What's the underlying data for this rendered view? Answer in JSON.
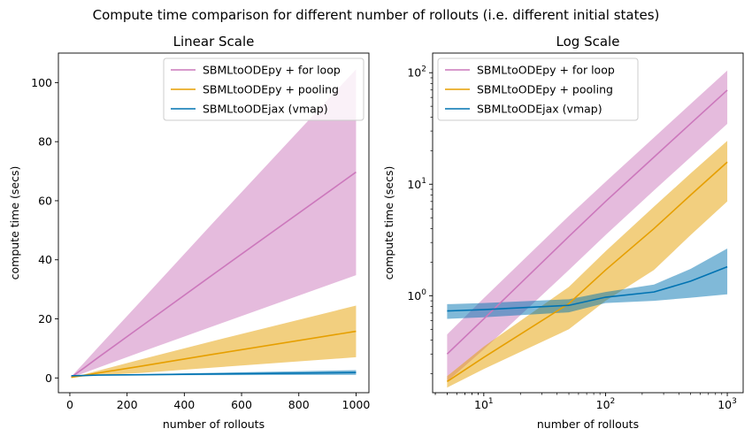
{
  "figure": {
    "title": "Compute time comparison for different number of rollouts (i.e. different initial states)"
  },
  "colors": {
    "for_loop": "#cc78bc",
    "pooling": "#e69f00",
    "vmap": "#0173b2"
  },
  "chart_data": [
    {
      "type": "line",
      "title": "Linear Scale",
      "xlabel": "number of rollouts",
      "ylabel": "compute time (secs)",
      "xscale": "linear",
      "yscale": "linear",
      "xlim": [
        -40,
        1045
      ],
      "ylim": [
        -5,
        110
      ],
      "xticks": [
        0,
        200,
        400,
        600,
        800,
        1000
      ],
      "xtick_labels": [
        "0",
        "200",
        "400",
        "600",
        "800",
        "1000"
      ],
      "yticks": [
        0,
        20,
        40,
        60,
        80,
        100
      ],
      "ytick_labels": [
        "0",
        "20",
        "40",
        "60",
        "80",
        "100"
      ],
      "legend_position": "top-right",
      "grid": false,
      "x": [
        5,
        10,
        50,
        100,
        250,
        500,
        1000
      ],
      "series": [
        {
          "name": "SBMLtoODEpy + for loop",
          "color_key": "for_loop",
          "values": [
            0.3,
            0.62,
            3.4,
            7.0,
            17.5,
            35.0,
            69.7
          ],
          "lower": [
            0.17,
            0.33,
            1.7,
            3.5,
            8.8,
            17.5,
            34.8
          ],
          "upper": [
            0.45,
            0.95,
            5.2,
            10.5,
            26.2,
            52.5,
            104.5
          ]
        },
        {
          "name": "SBMLtoODEpy + pooling",
          "color_key": "pooling",
          "values": [
            0.17,
            0.28,
            0.85,
            1.7,
            4.0,
            8.0,
            15.8
          ],
          "lower": [
            0.15,
            0.22,
            0.5,
            0.9,
            1.7,
            3.5,
            7.0
          ],
          "upper": [
            0.19,
            0.35,
            1.2,
            2.5,
            6.3,
            12.5,
            24.5
          ]
        },
        {
          "name": "SBMLtoODEjax (vmap)",
          "color_key": "vmap",
          "values": [
            0.73,
            0.75,
            0.82,
            0.97,
            1.08,
            1.35,
            1.82
          ],
          "lower": [
            0.62,
            0.64,
            0.71,
            0.86,
            0.9,
            0.96,
            1.03
          ],
          "upper": [
            0.84,
            0.86,
            0.93,
            1.08,
            1.26,
            1.74,
            2.65
          ]
        }
      ]
    },
    {
      "type": "line",
      "title": "Log Scale",
      "xlabel": "number of rollouts",
      "ylabel": "compute time (secs)",
      "xscale": "log",
      "yscale": "log",
      "xlim": [
        3.8,
        1350
      ],
      "ylim": [
        0.135,
        150
      ],
      "xticks": [
        10,
        100,
        1000
      ],
      "xtick_labels": [
        {
          "base": "10",
          "exp": "1"
        },
        {
          "base": "10",
          "exp": "2"
        },
        {
          "base": "10",
          "exp": "3"
        }
      ],
      "yticks": [
        1,
        10,
        100
      ],
      "ytick_labels": [
        {
          "base": "10",
          "exp": "0"
        },
        {
          "base": "10",
          "exp": "1"
        },
        {
          "base": "10",
          "exp": "2"
        }
      ],
      "legend_position": "top-left",
      "grid": false,
      "x": [
        5,
        10,
        50,
        100,
        250,
        500,
        1000
      ],
      "series": [
        {
          "name": "SBMLtoODEpy + for loop",
          "color_key": "for_loop",
          "values": [
            0.3,
            0.62,
            3.4,
            7.0,
            17.5,
            35.0,
            69.7
          ],
          "lower": [
            0.17,
            0.33,
            1.7,
            3.5,
            8.8,
            17.5,
            34.8
          ],
          "upper": [
            0.45,
            0.95,
            5.2,
            10.5,
            26.2,
            52.5,
            104.5
          ]
        },
        {
          "name": "SBMLtoODEpy + pooling",
          "color_key": "pooling",
          "values": [
            0.17,
            0.28,
            0.85,
            1.7,
            4.0,
            8.0,
            15.8
          ],
          "lower": [
            0.15,
            0.22,
            0.5,
            0.9,
            1.7,
            3.5,
            7.0
          ],
          "upper": [
            0.19,
            0.35,
            1.2,
            2.5,
            6.3,
            12.5,
            24.5
          ]
        },
        {
          "name": "SBMLtoODEjax (vmap)",
          "color_key": "vmap",
          "values": [
            0.73,
            0.75,
            0.82,
            0.97,
            1.08,
            1.35,
            1.82
          ],
          "lower": [
            0.62,
            0.64,
            0.71,
            0.86,
            0.9,
            0.96,
            1.03
          ],
          "upper": [
            0.84,
            0.86,
            0.93,
            1.08,
            1.26,
            1.74,
            2.65
          ]
        }
      ]
    }
  ]
}
